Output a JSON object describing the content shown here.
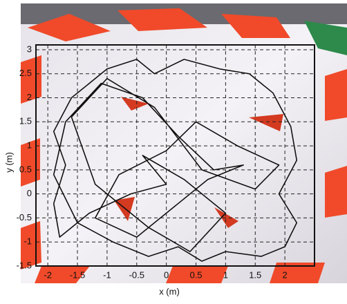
{
  "chart_data": {
    "type": "line",
    "x_label": "x (m)",
    "y_label": "y (m)",
    "xlim": [
      -2.2,
      2.5
    ],
    "ylim": [
      -1.5,
      3.1
    ],
    "xticks": [
      -2,
      -1.5,
      -1,
      -0.5,
      0,
      0.5,
      1,
      1.5,
      2
    ],
    "yticks": [
      -1.5,
      -1,
      -0.5,
      0,
      0.5,
      1,
      1.5,
      2,
      2.5,
      3
    ],
    "grid": true,
    "series": [
      {
        "color": "#111111",
        "x": [
          0.0,
          -0.6,
          -1.3,
          -1.8,
          -1.9,
          -1.7,
          -1.9,
          -1.6,
          -1.0,
          -0.5,
          -0.2,
          0.3,
          0.9,
          1.4,
          1.8,
          2.1,
          2.2,
          1.9,
          2.2,
          2.0,
          1.6,
          1.0,
          0.6,
          0.2,
          -0.3,
          -0.9,
          -1.5,
          -1.9,
          -1.7,
          -1.1,
          -0.4,
          0.2,
          0.8,
          1.3,
          0.7,
          0.1,
          -0.5,
          -1.2,
          -0.8,
          0.0,
          0.5,
          1.2,
          1.9,
          1.5,
          0.6,
          -0.2,
          -1.0,
          -1.6,
          -1.2,
          -0.3,
          0.4,
          1.0,
          0.3,
          -0.4,
          0.0
        ],
        "y": [
          0.2,
          0.0,
          -0.4,
          -0.9,
          -0.2,
          0.6,
          1.3,
          2.0,
          2.6,
          2.8,
          2.5,
          2.8,
          2.6,
          2.5,
          2.1,
          1.4,
          0.7,
          0.0,
          -0.6,
          -1.1,
          -1.3,
          -1.2,
          -1.4,
          -1.1,
          -1.3,
          -1.0,
          -0.6,
          0.4,
          1.5,
          2.3,
          2.0,
          1.2,
          0.5,
          0.6,
          0.3,
          -0.3,
          -0.9,
          -0.5,
          0.4,
          0.9,
          1.5,
          1.0,
          0.6,
          0.1,
          0.5,
          1.8,
          2.4,
          1.6,
          0.2,
          -0.7,
          -1.2,
          -0.4,
          0.3,
          0.8,
          0.2
        ]
      }
    ]
  }
}
